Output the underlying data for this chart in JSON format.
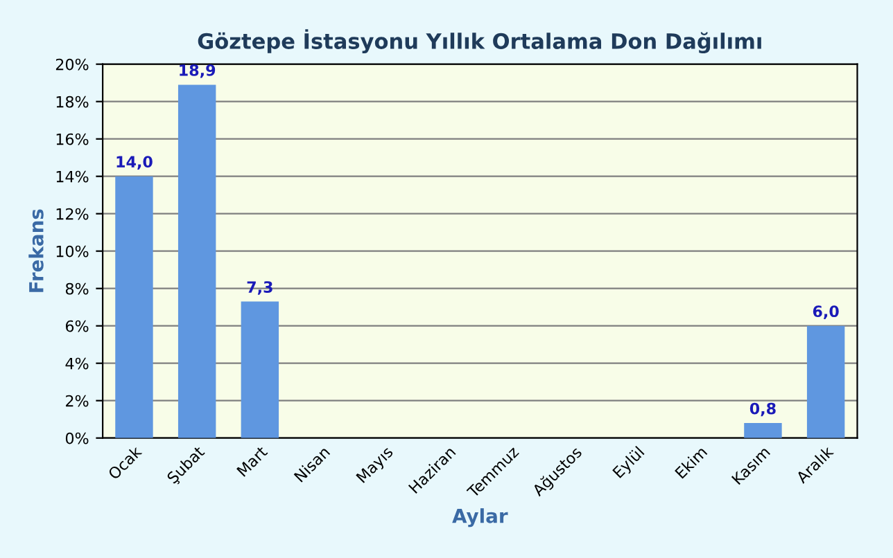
{
  "chart_data": {
    "type": "bar",
    "title": "Göztepe İstasyonu Yıllık Ortalama Don Dağılımı",
    "xlabel": "Aylar",
    "ylabel": "Frekans",
    "categories": [
      "Ocak",
      "Şubat",
      "Mart",
      "Nisan",
      "Mayıs",
      "Haziran",
      "Temmuz",
      "Ağustos",
      "Eylül",
      "Ekim",
      "Kasım",
      "Aralık"
    ],
    "values": [
      14.0,
      18.9,
      7.3,
      0,
      0,
      0,
      0,
      0,
      0,
      0,
      0.8,
      6.0
    ],
    "value_labels": [
      "14,0",
      "18,9",
      "7,3",
      null,
      null,
      null,
      null,
      null,
      null,
      null,
      "0,8",
      "6,0"
    ],
    "color": "#5f97e0",
    "ylim": [
      0,
      20
    ],
    "yticks": [
      {
        "value": 0,
        "label": "0%"
      },
      {
        "value": 2,
        "label": "2%"
      },
      {
        "value": 4,
        "label": "4%"
      },
      {
        "value": 6,
        "label": "6%"
      },
      {
        "value": 8,
        "label": "8%"
      },
      {
        "value": 10,
        "label": "10%"
      },
      {
        "value": 12,
        "label": "12%"
      },
      {
        "value": 14,
        "label": "14%"
      },
      {
        "value": 16,
        "label": "16%"
      },
      {
        "value": 18,
        "label": "18%"
      },
      {
        "value": 20,
        "label": "20%"
      }
    ],
    "grid": "y",
    "legend": false
  }
}
